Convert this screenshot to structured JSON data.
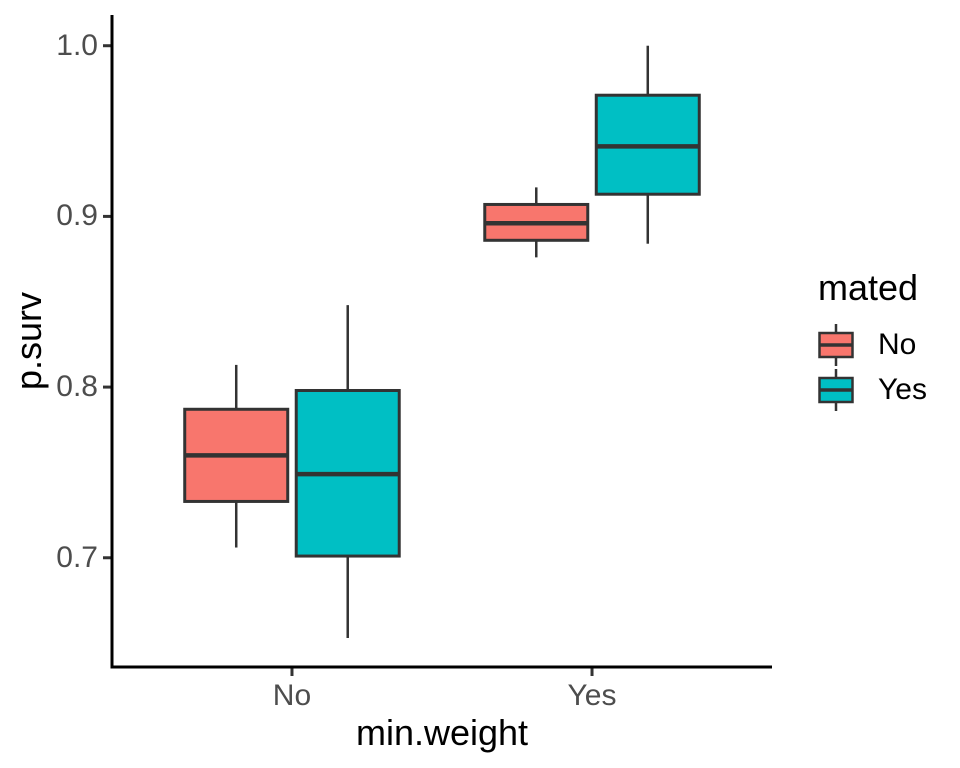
{
  "chart_data": {
    "type": "boxplot",
    "title": "",
    "xlabel": "min.weight",
    "ylabel": "p.surv",
    "x_categories": [
      "No",
      "Yes"
    ],
    "y_ticks": [
      0.7,
      0.8,
      0.9,
      1.0
    ],
    "y_tick_labels": [
      "0.7",
      "0.8",
      "0.9",
      "1.0"
    ],
    "ylim": [
      0.636,
      1.018
    ],
    "grid": "off",
    "legend": {
      "title": "mated",
      "position": "right",
      "entries": [
        {
          "label": "No",
          "color": "#F8766D"
        },
        {
          "label": "Yes",
          "color": "#00BFC4"
        }
      ]
    },
    "series": [
      {
        "name": "No",
        "color": "#F8766D",
        "boxes": [
          {
            "category": "No",
            "min": 0.706,
            "q1": 0.733,
            "median": 0.76,
            "q3": 0.787,
            "max": 0.813
          },
          {
            "category": "Yes",
            "min": 0.876,
            "q1": 0.886,
            "median": 0.896,
            "q3": 0.907,
            "max": 0.917
          }
        ]
      },
      {
        "name": "Yes",
        "color": "#00BFC4",
        "boxes": [
          {
            "category": "No",
            "min": 0.653,
            "q1": 0.701,
            "median": 0.749,
            "q3": 0.798,
            "max": 0.848
          },
          {
            "category": "Yes",
            "min": 0.884,
            "q1": 0.913,
            "median": 0.941,
            "q3": 0.971,
            "max": 1.0
          }
        ]
      }
    ],
    "style": {
      "box_stroke": "#333333",
      "axis_line_color": "#000000",
      "tick_color": "#333333",
      "tick_text_color": "#4d4d4d",
      "title_text_color": "#000000",
      "background": "#ffffff"
    }
  }
}
